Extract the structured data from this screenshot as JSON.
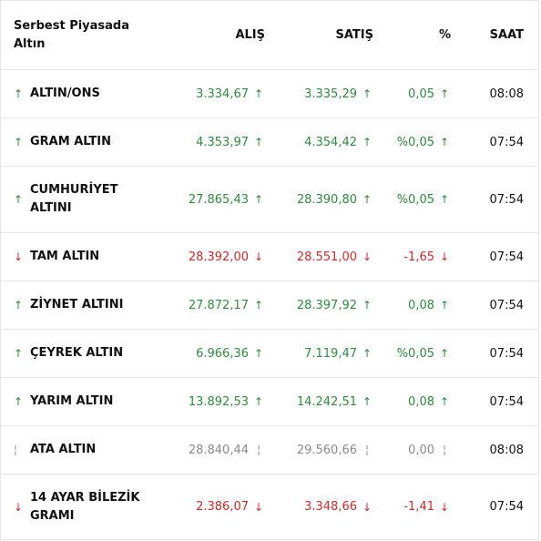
{
  "header": {
    "title_line1": "Serbest Piyasada",
    "title_line2": "Altın",
    "col_alis": "ALIŞ",
    "col_satis": "SATIŞ",
    "col_pct": "%",
    "col_saat": "SAAT"
  },
  "colors": {
    "up": "#2e8b3e",
    "down": "#cc2b2b",
    "flat": "#8a8a8a"
  },
  "rows": [
    {
      "name_line1": "ALTIN/ONS",
      "name_line2": "",
      "alis": "3.334,67",
      "satis": "3.335,29",
      "pct": "0,05",
      "saat": "08:08",
      "dir": "up",
      "name_arrow": "↑",
      "alis_arrow": "↑",
      "satis_arrow": "↑",
      "pct_arrow": "↑"
    },
    {
      "name_line1": "GRAM ALTIN",
      "name_line2": "",
      "alis": "4.353,97",
      "satis": "4.354,42",
      "pct": "%0,05",
      "saat": "07:54",
      "dir": "up",
      "name_arrow": "↑",
      "alis_arrow": "↑",
      "satis_arrow": "↑",
      "pct_arrow": "↑"
    },
    {
      "name_line1": "CUMHURİYET",
      "name_line2": "ALTINI",
      "alis": "27.865,43",
      "satis": "28.390,80",
      "pct": "%0,05",
      "saat": "07:54",
      "dir": "up",
      "name_arrow": "↑",
      "alis_arrow": "↑",
      "satis_arrow": "↑",
      "pct_arrow": "↑"
    },
    {
      "name_line1": "TAM ALTIN",
      "name_line2": "",
      "alis": "28.392,00",
      "satis": "28.551,00",
      "pct": "-1,65",
      "saat": "07:54",
      "dir": "down",
      "name_arrow": "↓",
      "alis_arrow": "↓",
      "satis_arrow": "↓",
      "pct_arrow": "↓"
    },
    {
      "name_line1": "ZİYNET ALTINI",
      "name_line2": "",
      "alis": "27.872,17",
      "satis": "28.397,92",
      "pct": "0,08",
      "saat": "07:54",
      "dir": "up",
      "name_arrow": "↑",
      "alis_arrow": "↑",
      "satis_arrow": "↑",
      "pct_arrow": "↑"
    },
    {
      "name_line1": "ÇEYREK ALTIN",
      "name_line2": "",
      "alis": "6.966,36",
      "satis": "7.119,47",
      "pct": "%0,05",
      "saat": "07:54",
      "dir": "up",
      "name_arrow": "↑",
      "alis_arrow": "↑",
      "satis_arrow": "↑",
      "pct_arrow": "↑"
    },
    {
      "name_line1": "YARIM ALTIN",
      "name_line2": "",
      "alis": "13.892,53",
      "satis": "14.242,51",
      "pct": "0,08",
      "saat": "07:54",
      "dir": "up",
      "name_arrow": "↑",
      "alis_arrow": "↑",
      "satis_arrow": "↑",
      "pct_arrow": "↑"
    },
    {
      "name_line1": "ATA ALTIN",
      "name_line2": "",
      "alis": "28.840,44",
      "satis": "29.560,66",
      "pct": "0,00",
      "saat": "08:08",
      "dir": "flat",
      "name_arrow": "¦",
      "alis_arrow": "¦",
      "satis_arrow": "¦",
      "pct_arrow": "¦"
    },
    {
      "name_line1": "14 AYAR BİLEZİK",
      "name_line2": "GRAMI",
      "alis": "2.386,07",
      "satis": "3.348,66",
      "pct": "-1,41",
      "saat": "07:54",
      "dir": "down",
      "name_arrow": "↓",
      "alis_arrow": "↓",
      "satis_arrow": "↓",
      "pct_arrow": "↓"
    }
  ]
}
